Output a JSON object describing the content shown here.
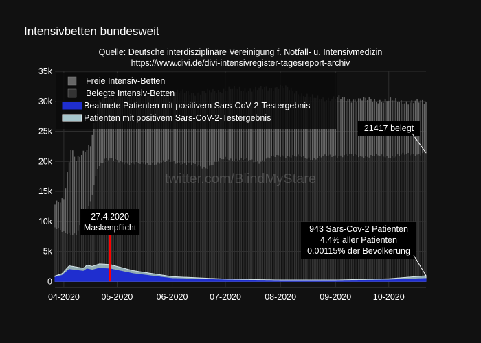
{
  "chart_data": {
    "type": "bar",
    "title": "Intensivbetten bundesweit",
    "subtitle": [
      "Quelle: Deutsche interdisziplinäre Vereinigung f. Notfall- u. Intensivmedizin",
      "https://www.divi.de/divi-intensivregister-tagesreport-archiv"
    ],
    "watermark": "twitter.com/BlindMyStare",
    "x_range": [
      "2020-03-27",
      "2020-10-22"
    ],
    "x_ticks": [
      {
        "date": "2020-04-01",
        "label": "04-2020"
      },
      {
        "date": "2020-05-01",
        "label": "05-2020"
      },
      {
        "date": "2020-06-01",
        "label": "06-2020"
      },
      {
        "date": "2020-07-01",
        "label": "07-2020"
      },
      {
        "date": "2020-08-01",
        "label": "08-2020"
      },
      {
        "date": "2020-09-01",
        "label": "09-2020"
      },
      {
        "date": "2020-10-01",
        "label": "10-2020"
      }
    ],
    "ylim": [
      -1000,
      35000
    ],
    "y_ticks": [
      {
        "value": 0,
        "label": "0"
      },
      {
        "value": 5000,
        "label": "5k"
      },
      {
        "value": 10000,
        "label": "10k"
      },
      {
        "value": 15000,
        "label": "15k"
      },
      {
        "value": 20000,
        "label": "20k"
      },
      {
        "value": 25000,
        "label": "25k"
      },
      {
        "value": 30000,
        "label": "30k"
      },
      {
        "value": 35000,
        "label": "35k"
      }
    ],
    "legend": {
      "placement": "top-left",
      "entries": [
        {
          "name": "Freie Intensiv-Betten",
          "color": "#666666"
        },
        {
          "name": "Belegte Intensiv-Betten",
          "color": "#333333"
        },
        {
          "name": "Beatmete Patienten mit positivem Sars-CoV-2-Testergebnis",
          "color": "#1f2ecf"
        },
        {
          "name": "Patienten mit positivem Sars-CoV-2-Testergebnis",
          "color": "#a6c5cc"
        }
      ]
    },
    "series": [
      {
        "name": "Belegte Intensiv-Betten",
        "keypoints": [
          {
            "date": "2020-03-27",
            "value": 9000
          },
          {
            "date": "2020-04-01",
            "value": 8000
          },
          {
            "date": "2020-04-08",
            "value": 8000
          },
          {
            "date": "2020-04-16",
            "value": 13000
          },
          {
            "date": "2020-04-20",
            "value": 19000
          },
          {
            "date": "2020-04-24",
            "value": 20500
          },
          {
            "date": "2020-05-01",
            "value": 20000
          },
          {
            "date": "2020-05-15",
            "value": 19500
          },
          {
            "date": "2020-06-01",
            "value": 20000
          },
          {
            "date": "2020-06-20",
            "value": 19000
          },
          {
            "date": "2020-07-01",
            "value": 20500
          },
          {
            "date": "2020-07-20",
            "value": 20000
          },
          {
            "date": "2020-08-01",
            "value": 21000
          },
          {
            "date": "2020-08-20",
            "value": 20500
          },
          {
            "date": "2020-09-01",
            "value": 21000
          },
          {
            "date": "2020-10-01",
            "value": 20800
          },
          {
            "date": "2020-10-22",
            "value": 21417
          }
        ]
      },
      {
        "name": "Freie Intensiv-Betten",
        "keypoints": [
          {
            "date": "2020-03-27",
            "value": 4000
          },
          {
            "date": "2020-04-01",
            "value": 6000
          },
          {
            "date": "2020-04-05",
            "value": 14000
          },
          {
            "date": "2020-04-08",
            "value": 12000
          },
          {
            "date": "2020-04-16",
            "value": 10000
          },
          {
            "date": "2020-04-20",
            "value": 10500
          },
          {
            "date": "2020-04-24",
            "value": 10000
          },
          {
            "date": "2020-05-01",
            "value": 11000
          },
          {
            "date": "2020-05-15",
            "value": 11500
          },
          {
            "date": "2020-06-01",
            "value": 11500
          },
          {
            "date": "2020-06-20",
            "value": 12500
          },
          {
            "date": "2020-07-01",
            "value": 11500
          },
          {
            "date": "2020-07-20",
            "value": 12000
          },
          {
            "date": "2020-08-01",
            "value": 11500
          },
          {
            "date": "2020-08-20",
            "value": 10000
          },
          {
            "date": "2020-09-01",
            "value": 9500
          },
          {
            "date": "2020-10-01",
            "value": 9300
          },
          {
            "date": "2020-10-22",
            "value": 8400
          }
        ]
      },
      {
        "name": "Patienten mit positivem Sars-CoV-2-Testergebnis",
        "keypoints": [
          {
            "date": "2020-03-27",
            "value": 900
          },
          {
            "date": "2020-03-31",
            "value": 1300
          },
          {
            "date": "2020-04-04",
            "value": 2600
          },
          {
            "date": "2020-04-12",
            "value": 2200
          },
          {
            "date": "2020-04-14",
            "value": 2700
          },
          {
            "date": "2020-04-17",
            "value": 2500
          },
          {
            "date": "2020-04-21",
            "value": 2900
          },
          {
            "date": "2020-04-27",
            "value": 2800
          },
          {
            "date": "2020-05-10",
            "value": 1800
          },
          {
            "date": "2020-06-01",
            "value": 800
          },
          {
            "date": "2020-07-01",
            "value": 400
          },
          {
            "date": "2020-08-01",
            "value": 250
          },
          {
            "date": "2020-09-01",
            "value": 250
          },
          {
            "date": "2020-10-01",
            "value": 450
          },
          {
            "date": "2020-10-22",
            "value": 943
          }
        ]
      },
      {
        "name": "Beatmete Patienten mit positivem Sars-CoV-2-Testergebnis",
        "keypoints": [
          {
            "date": "2020-03-27",
            "value": 700
          },
          {
            "date": "2020-03-31",
            "value": 1000
          },
          {
            "date": "2020-04-04",
            "value": 2000
          },
          {
            "date": "2020-04-12",
            "value": 1700
          },
          {
            "date": "2020-04-14",
            "value": 2100
          },
          {
            "date": "2020-04-17",
            "value": 1900
          },
          {
            "date": "2020-04-21",
            "value": 2200
          },
          {
            "date": "2020-04-27",
            "value": 2100
          },
          {
            "date": "2020-05-10",
            "value": 1300
          },
          {
            "date": "2020-06-01",
            "value": 500
          },
          {
            "date": "2020-07-01",
            "value": 250
          },
          {
            "date": "2020-08-01",
            "value": 150
          },
          {
            "date": "2020-09-01",
            "value": 150
          },
          {
            "date": "2020-10-01",
            "value": 250
          },
          {
            "date": "2020-10-22",
            "value": 500
          }
        ]
      }
    ],
    "annotations": [
      {
        "lines": [
          "27.4.2020",
          "Maskenpflicht"
        ],
        "date": "2020-04-27",
        "marker": "vertical-line",
        "marker_color": "#ff0000"
      },
      {
        "lines": [
          "21417 belegt"
        ],
        "date": "2020-10-22",
        "value": 21417
      },
      {
        "lines": [
          "943 Sars-Cov-2 Patienten",
          "4.4% aller Patienten",
          "0.00115% der Bevölkerung"
        ],
        "date": "2020-10-22",
        "value": 943
      }
    ]
  }
}
